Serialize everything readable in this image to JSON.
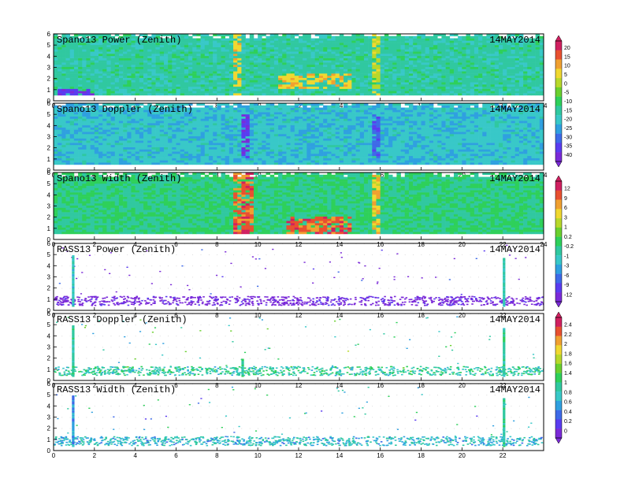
{
  "chart_data": [
    {
      "type": "heatmap",
      "title": "Spano13 Power (Zenith)",
      "date": "14MAY2014",
      "xlim": [
        0,
        24
      ],
      "ylim": [
        0,
        6
      ],
      "x_ticks": [
        "0",
        "2",
        "4",
        "6",
        "8",
        "10",
        "12",
        "14",
        "16",
        "18",
        "20",
        "22",
        "24"
      ],
      "y_ticks": [
        "0",
        "1",
        "2",
        "3",
        "4",
        "5",
        "6"
      ],
      "colorbar_ticks": [
        "20",
        "15",
        "10",
        "5",
        "0",
        "-5",
        "-10",
        "-15",
        "-20",
        "-25",
        "-30",
        "-35",
        "-40"
      ],
      "dominant_value": -15,
      "features": [
        {
          "x_start": 0.3,
          "x_end": 2.0,
          "y_start": 0.3,
          "y_end": 1.0,
          "value": -35
        },
        {
          "x_start": 8.9,
          "x_end": 9.2,
          "y_start": 0.5,
          "y_end": 6.0,
          "value": 5
        },
        {
          "x_start": 15.6,
          "x_end": 15.9,
          "y_start": 0.5,
          "y_end": 6.0,
          "value": 0
        },
        {
          "x_start": 11.0,
          "x_end": 14.5,
          "y_start": 1.0,
          "y_end": 2.5,
          "value": 5
        }
      ]
    },
    {
      "type": "heatmap",
      "title": "Spano13 Doppler (Zenith)",
      "date": "14MAY2014",
      "xlim": [
        0,
        24
      ],
      "ylim": [
        0,
        6
      ],
      "x_ticks": [
        "0",
        "2",
        "4",
        "6",
        "8",
        "10",
        "12",
        "14",
        "16",
        "18",
        "20",
        "22",
        "24"
      ],
      "y_ticks": [
        "0",
        "1",
        "2",
        "3",
        "4",
        "5",
        "6"
      ],
      "dominant_value": -20,
      "features": [
        {
          "x_start": 9.2,
          "x_end": 9.6,
          "y_start": 1.0,
          "y_end": 5.0,
          "value": -35
        },
        {
          "x_start": 15.7,
          "x_end": 16.0,
          "y_start": 1.0,
          "y_end": 5.0,
          "value": -30
        }
      ]
    },
    {
      "type": "heatmap",
      "title": "Spano13 Width (Zenith)",
      "date": "14MAY2014",
      "xlim": [
        0,
        24
      ],
      "ylim": [
        0,
        6
      ],
      "x_ticks": [
        "0",
        "2",
        "4",
        "6",
        "8",
        "10",
        "12",
        "14",
        "16",
        "18",
        "20",
        "22",
        "24"
      ],
      "y_ticks": [
        "0",
        "1",
        "2",
        "3",
        "4",
        "5",
        "6"
      ],
      "colorbar_ticks": [
        "12",
        "9",
        "6",
        "3",
        "1",
        "0.2",
        "-0.2",
        "-1",
        "-3",
        "-6",
        "-9",
        "-12"
      ],
      "dominant_value": -1,
      "features": [
        {
          "x_start": 8.8,
          "x_end": 9.8,
          "y_start": 0.5,
          "y_end": 6.0,
          "value": 9
        },
        {
          "x_start": 11.5,
          "x_end": 14.5,
          "y_start": 0.5,
          "y_end": 2.0,
          "value": 9
        },
        {
          "x_start": 15.7,
          "x_end": 16.0,
          "y_start": 0.5,
          "y_end": 6.0,
          "value": 6
        }
      ]
    },
    {
      "type": "heatmap",
      "title": "RASS13 Power (Zenith)",
      "date": "14MAY2014",
      "xlim": [
        0,
        24
      ],
      "ylim": [
        0,
        6
      ],
      "x_ticks": [
        "0",
        "2",
        "4",
        "6",
        "8",
        "10",
        "12",
        "14",
        "16",
        "18",
        "20",
        "22"
      ],
      "y_ticks": [
        "0",
        "1",
        "2",
        "3",
        "4",
        "5",
        "6"
      ],
      "dominant_value": -12,
      "features": [
        {
          "x_start": 0.9,
          "x_end": 1.0,
          "y_start": 0.5,
          "y_end": 5.0,
          "value": -3
        },
        {
          "x_start": 22.0,
          "x_end": 22.1,
          "y_start": 0.5,
          "y_end": 4.8,
          "value": -3
        },
        {
          "x_start": 0.0,
          "x_end": 24.0,
          "y_start": 0.5,
          "y_end": 1.2,
          "value": -12
        }
      ]
    },
    {
      "type": "heatmap",
      "title": "RASS13 Doppler (Zenith)",
      "date": "14MAY2014",
      "xlim": [
        0,
        24
      ],
      "ylim": [
        0,
        6
      ],
      "x_ticks": [
        "0",
        "2",
        "4",
        "6",
        "8",
        "10",
        "12",
        "14",
        "16",
        "18",
        "20",
        "22"
      ],
      "y_ticks": [
        "0",
        "1",
        "2",
        "3",
        "4",
        "5",
        "6"
      ],
      "colorbar_ticks": [
        "2.4",
        "2.2",
        "2",
        "1.8",
        "1.6",
        "1.4",
        "1",
        "0.8",
        "0.6",
        "0.4",
        "0.2",
        "0"
      ],
      "dominant_value": 1,
      "features": [
        {
          "x_start": 0.9,
          "x_end": 1.0,
          "y_start": 0.5,
          "y_end": 5.0,
          "value": 1
        },
        {
          "x_start": 22.0,
          "x_end": 22.1,
          "y_start": 0.5,
          "y_end": 4.8,
          "value": 1
        },
        {
          "x_start": 9.2,
          "x_end": 9.3,
          "y_start": 0.5,
          "y_end": 2.0,
          "value": 1
        },
        {
          "x_start": 0.0,
          "x_end": 24.0,
          "y_start": 0.5,
          "y_end": 1.0,
          "value": 1
        }
      ]
    },
    {
      "type": "heatmap",
      "title": "RASS13 Width (Zenith)",
      "date": "14MAY2014",
      "xlim": [
        0,
        24
      ],
      "ylim": [
        0,
        6
      ],
      "x_ticks": [
        "0",
        "2",
        "4",
        "6",
        "8",
        "10",
        "12",
        "14",
        "16",
        "18",
        "20",
        "22"
      ],
      "y_ticks": [
        "0",
        "1",
        "2",
        "3",
        "4",
        "5",
        "6"
      ],
      "dominant_value": 0.8,
      "features": [
        {
          "x_start": 0.9,
          "x_end": 1.0,
          "y_start": 0.5,
          "y_end": 5.0,
          "value": 0.6
        },
        {
          "x_start": 22.0,
          "x_end": 22.1,
          "y_start": 0.5,
          "y_end": 4.8,
          "value": 1
        },
        {
          "x_start": 0.0,
          "x_end": 24.0,
          "y_start": 0.5,
          "y_end": 1.0,
          "value": 0.8
        }
      ]
    }
  ],
  "colors": {
    "scale": [
      "#7b2ad8",
      "#5a3cf0",
      "#3e6ae8",
      "#2fa0e0",
      "#38c8c8",
      "#30c8a0",
      "#2ed05a",
      "#6ad02e",
      "#b8d82a",
      "#f0d830",
      "#f0a030",
      "#e85030",
      "#d02060"
    ],
    "background": "#ffffff",
    "frame": "#000000"
  }
}
